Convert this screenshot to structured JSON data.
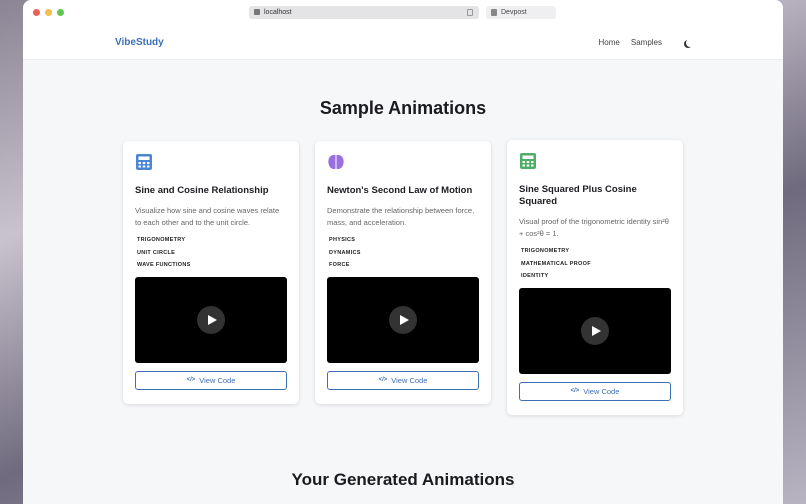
{
  "browser": {
    "url": "localhost",
    "tab": "Devpost",
    "traffic_colors": [
      "#ec5f57",
      "#f4bd4f",
      "#5fc454"
    ]
  },
  "nav": {
    "brand": "VibeStudy",
    "links": [
      "Home",
      "Samples"
    ],
    "theme_icon": "moon-icon"
  },
  "main": {
    "title": "Sample Animations",
    "generated_title": "Your Generated Animations"
  },
  "cards": [
    {
      "icon": "calculator-icon",
      "icon_color": "#4a86d4",
      "title": "Sine and Cosine Relationship",
      "description": "Visualize how sine and cosine waves relate to each other and to the unit circle.",
      "tags": [
        "TRIGONOMETRY",
        "UNIT CIRCLE",
        "WAVE FUNCTIONS"
      ],
      "button": "View Code"
    },
    {
      "icon": "brain-icon",
      "icon_color": "#9b6fe0",
      "title": "Newton's Second Law of Motion",
      "description": "Demonstrate the relationship between force, mass, and acceleration.",
      "tags": [
        "PHYSICS",
        "DYNAMICS",
        "FORCE"
      ],
      "button": "View Code"
    },
    {
      "icon": "calculator-icon",
      "icon_color": "#4caf65",
      "title": "Sine Squared Plus Cosine Squared",
      "description": "Visual proof of the trigonometric identity sin²θ + cos²θ = 1.",
      "tags": [
        "TRIGONOMETRY",
        "MATHEMATICAL PROOF",
        "IDENTITY"
      ],
      "button": "View Code"
    }
  ]
}
